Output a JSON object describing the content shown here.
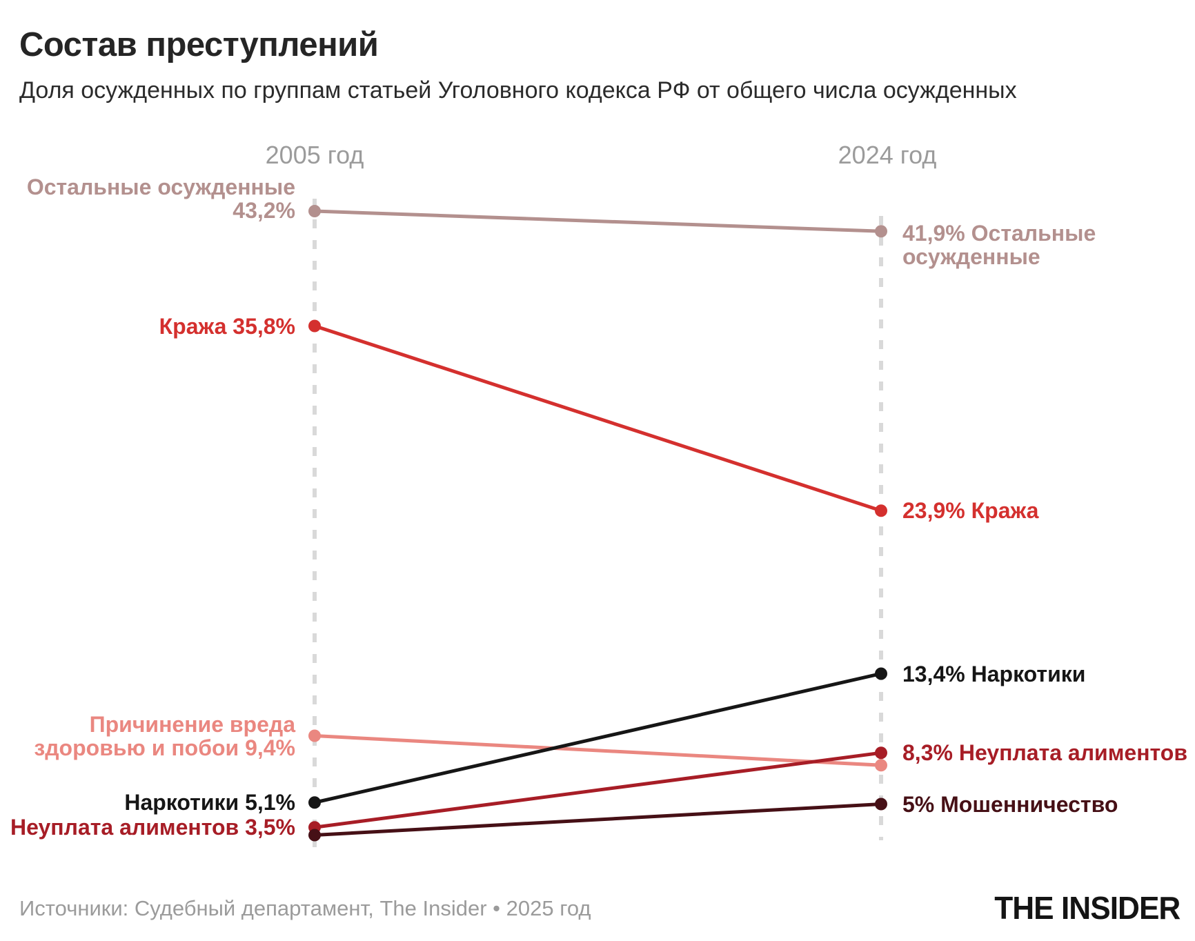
{
  "header": {
    "title": "Состав преступлений",
    "subtitle": "Доля осужденных по группам статьей Уголовного кодекса РФ от общего числа осужденных"
  },
  "footer": {
    "source": "Источники: Судебный департамент, The Insider • 2025 год",
    "logo": "THE INSIDER"
  },
  "palette": {
    "title_black": "#252525",
    "muted_gray": "#9b9b9b",
    "column_dash_gray": "#d9d9d9"
  },
  "chart_data": {
    "type": "line",
    "subtype": "slopegraph",
    "title": "Состав преступлений",
    "unit": "%",
    "x_categories": [
      "2005 год",
      "2024 год"
    ],
    "value_axis": "hidden",
    "grid": false,
    "legend_position": "none",
    "layout": {
      "column_dash_color": "#d9d9d9",
      "header_text_color": "#9b9b9b"
    },
    "series": [
      {
        "key": "ostalnye",
        "name": "Остальные осужденные",
        "color": "#b3908e",
        "values": [
          43.2,
          41.9
        ],
        "left_label_lines": [
          "Остальные осужденные",
          "43,2%"
        ],
        "right_label_lines": [
          "41,9% Остальные",
          "осужденные"
        ]
      },
      {
        "key": "krazha",
        "name": "Кража",
        "color": "#d4302e",
        "values": [
          35.8,
          23.9
        ],
        "left_label_lines": [
          "Кража 35,8%"
        ],
        "right_label_lines": [
          "23,9% Кража"
        ]
      },
      {
        "key": "vred-zdorovyu",
        "name": "Причинение вреда здоровью и побои",
        "color": "#ea8780",
        "values": [
          9.4,
          7.5
        ],
        "left_label_lines": [
          "Причинение вреда",
          "здоровью и побои 9,4%"
        ],
        "right_label_lines": []
      },
      {
        "key": "narkotiki",
        "name": "Наркотики",
        "color": "#161616",
        "values": [
          5.1,
          13.4
        ],
        "left_label_lines": [
          "Наркотики 5,1%"
        ],
        "right_label_lines": [
          "13,4% Наркотики"
        ]
      },
      {
        "key": "alimenty",
        "name": "Неуплата алиментов",
        "color": "#a71d26",
        "values": [
          3.5,
          8.3
        ],
        "left_label_lines": [
          "Неуплата алиментов 3,5%"
        ],
        "right_label_lines": [
          "8,3% Неуплата алиментов"
        ]
      },
      {
        "key": "moshennichestvo",
        "name": "Мошенничество",
        "color": "#461016",
        "values": [
          3.0,
          5.0
        ],
        "left_label_lines": [],
        "right_label_lines": [
          "5% Мошенничество"
        ]
      }
    ]
  }
}
